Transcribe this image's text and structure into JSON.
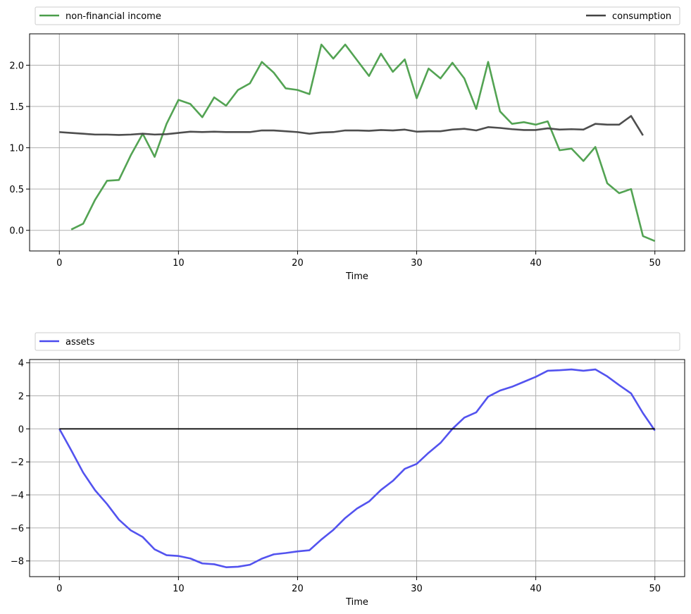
{
  "chart_data": [
    {
      "type": "line",
      "title": "",
      "xlabel": "Time",
      "ylabel": "",
      "xlim": [
        -2.5,
        52.5
      ],
      "ylim": [
        -0.25,
        2.38
      ],
      "xticks": [
        0,
        10,
        20,
        30,
        40,
        50
      ],
      "xtick_labels": [
        "0",
        "10",
        "20",
        "30",
        "40",
        "50"
      ],
      "yticks": [
        0.0,
        0.5,
        1.0,
        1.5,
        2.0
      ],
      "ytick_labels": [
        "0.0",
        "0.5",
        "1.0",
        "1.5",
        "2.0"
      ],
      "grid": true,
      "legend": {
        "placement": "above-plot",
        "entries": [
          "non-financial income",
          "consumption"
        ]
      },
      "series": [
        {
          "name": "non-financial income",
          "color": "#4a9e4a",
          "x": [
            1,
            2,
            3,
            4,
            5,
            6,
            7,
            8,
            9,
            10,
            11,
            12,
            13,
            14,
            15,
            16,
            17,
            18,
            19,
            20,
            21,
            22,
            23,
            24,
            25,
            26,
            27,
            28,
            29,
            30,
            31,
            32,
            33,
            34,
            35,
            36,
            37,
            38,
            39,
            40,
            41,
            42,
            43,
            44,
            45,
            46,
            47,
            48,
            49,
            50
          ],
          "values": [
            0.01,
            0.08,
            0.37,
            0.6,
            0.61,
            0.91,
            1.17,
            0.89,
            1.29,
            1.58,
            1.53,
            1.37,
            1.61,
            1.51,
            1.7,
            1.78,
            2.04,
            1.91,
            1.72,
            1.7,
            1.65,
            2.25,
            2.08,
            2.25,
            2.06,
            1.87,
            2.14,
            1.92,
            2.07,
            1.6,
            1.96,
            1.84,
            2.03,
            1.84,
            1.47,
            2.04,
            1.44,
            1.29,
            1.31,
            1.28,
            1.32,
            0.97,
            0.99,
            0.84,
            1.01,
            0.57,
            0.45,
            0.5,
            -0.07,
            -0.13
          ]
        },
        {
          "name": "consumption",
          "color": "#444444",
          "x": [
            0,
            1,
            2,
            3,
            4,
            5,
            6,
            7,
            8,
            9,
            10,
            11,
            12,
            13,
            14,
            15,
            16,
            17,
            18,
            19,
            20,
            21,
            22,
            23,
            24,
            25,
            26,
            27,
            28,
            29,
            30,
            31,
            32,
            33,
            34,
            35,
            36,
            37,
            38,
            39,
            40,
            41,
            42,
            43,
            44,
            45,
            46,
            47,
            48,
            49
          ],
          "values": [
            1.19,
            1.18,
            1.17,
            1.16,
            1.16,
            1.155,
            1.16,
            1.17,
            1.16,
            1.165,
            1.18,
            1.195,
            1.19,
            1.195,
            1.19,
            1.19,
            1.19,
            1.21,
            1.21,
            1.2,
            1.19,
            1.17,
            1.185,
            1.19,
            1.21,
            1.21,
            1.205,
            1.215,
            1.21,
            1.22,
            1.195,
            1.2,
            1.2,
            1.22,
            1.23,
            1.21,
            1.25,
            1.24,
            1.225,
            1.215,
            1.215,
            1.235,
            1.22,
            1.225,
            1.22,
            1.29,
            1.28,
            1.28,
            1.385,
            1.15
          ]
        }
      ]
    },
    {
      "type": "line",
      "title": "",
      "xlabel": "Time",
      "ylabel": "",
      "xlim": [
        -2.5,
        52.5
      ],
      "ylim": [
        -8.95,
        4.2
      ],
      "xticks": [
        0,
        10,
        20,
        30,
        40,
        50
      ],
      "xtick_labels": [
        "0",
        "10",
        "20",
        "30",
        "40",
        "50"
      ],
      "yticks": [
        -8,
        -6,
        -4,
        -2,
        0,
        2,
        4
      ],
      "ytick_labels": [
        "−8",
        "−6",
        "−4",
        "−2",
        "0",
        "2",
        "4"
      ],
      "grid": true,
      "legend": {
        "placement": "above-plot",
        "entries": [
          "assets"
        ]
      },
      "series": [
        {
          "name": "assets",
          "color": "#4a4aee",
          "x": [
            0,
            1,
            2,
            3,
            4,
            5,
            6,
            7,
            8,
            9,
            10,
            11,
            12,
            13,
            14,
            15,
            16,
            17,
            18,
            19,
            20,
            21,
            22,
            23,
            24,
            25,
            26,
            27,
            28,
            29,
            30,
            31,
            32,
            33,
            34,
            35,
            36,
            37,
            38,
            39,
            40,
            41,
            42,
            43,
            44,
            45,
            46,
            47,
            48,
            49,
            50
          ],
          "values": [
            0.0,
            -1.3,
            -2.65,
            -3.72,
            -4.55,
            -5.5,
            -6.15,
            -6.55,
            -7.3,
            -7.65,
            -7.7,
            -7.85,
            -8.15,
            -8.2,
            -8.38,
            -8.35,
            -8.23,
            -7.86,
            -7.6,
            -7.52,
            -7.42,
            -7.35,
            -6.7,
            -6.12,
            -5.4,
            -4.82,
            -4.4,
            -3.7,
            -3.15,
            -2.42,
            -2.12,
            -1.45,
            -0.85,
            0.0,
            0.68,
            1.0,
            1.95,
            2.32,
            2.55,
            2.85,
            3.15,
            3.52,
            3.55,
            3.6,
            3.52,
            3.6,
            3.18,
            2.65,
            2.15,
            0.95,
            -0.1
          ]
        },
        {
          "name": "",
          "color": "#000000",
          "x": [
            0,
            50
          ],
          "values": [
            0,
            0
          ]
        }
      ]
    }
  ]
}
